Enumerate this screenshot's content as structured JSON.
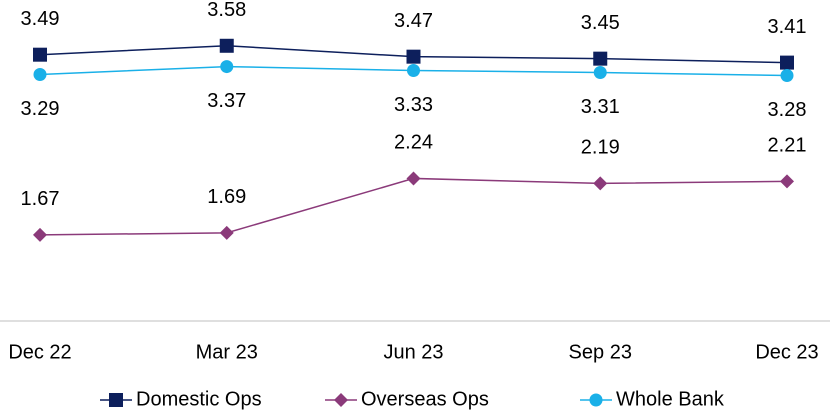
{
  "chart_data": {
    "type": "line",
    "categories": [
      "Dec 22",
      "Mar 23",
      "Jun 23",
      "Sep 23",
      "Dec 23"
    ],
    "series": [
      {
        "name": "Domestic Ops",
        "color": "#0d1f5c",
        "marker": "square",
        "label_position": "above",
        "values": [
          3.49,
          3.58,
          3.47,
          3.45,
          3.41
        ]
      },
      {
        "name": "Overseas Ops",
        "color": "#8b3a7a",
        "marker": "diamond",
        "label_position": "above",
        "values": [
          1.67,
          1.69,
          2.24,
          2.19,
          2.21
        ]
      },
      {
        "name": "Whole Bank",
        "color": "#1ab0e8",
        "marker": "circle",
        "label_position": "below",
        "values": [
          3.29,
          3.37,
          3.33,
          3.31,
          3.28
        ]
      }
    ],
    "ylim": [
      0.8,
      3.8
    ],
    "legend": "bottom"
  }
}
